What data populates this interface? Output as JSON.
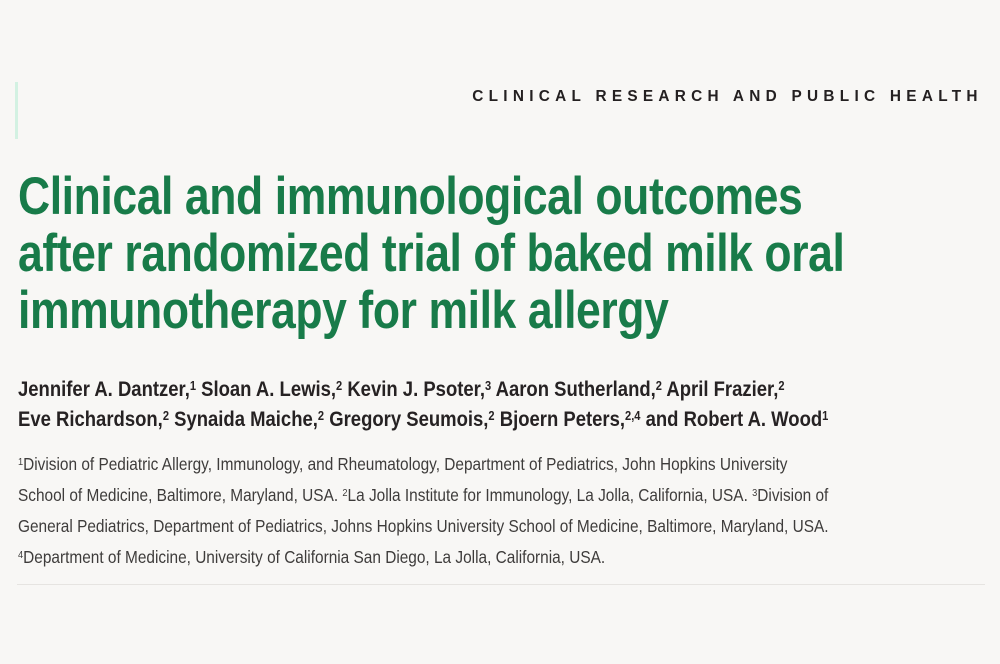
{
  "colors": {
    "background": "#f8f7f5",
    "kicker_text": "#242021",
    "title_green": "#187b49",
    "author_text": "#262223",
    "affiliation_text": "#3e3c3b",
    "accent_bar": "#d3f1e2",
    "divider": "#e6e4e1"
  },
  "kicker": {
    "text": "CLINICAL RESEARCH AND PUBLIC HEALTH"
  },
  "article": {
    "title_lines": [
      "Clinical and immunological outcomes",
      "after randomized trial of baked milk oral",
      "immunotherapy for milk allergy"
    ],
    "author_lines": [
      [
        {
          "t": "Jennifer A. Dantzer,"
        },
        {
          "s": "1"
        },
        {
          "t": " Sloan A. Lewis,"
        },
        {
          "s": "2"
        },
        {
          "t": " Kevin J. Psoter,"
        },
        {
          "s": "3"
        },
        {
          "t": " Aaron Sutherland,"
        },
        {
          "s": "2"
        },
        {
          "t": " April Frazier,"
        },
        {
          "s": "2"
        }
      ],
      [
        {
          "t": "Eve Richardson,"
        },
        {
          "s": "2"
        },
        {
          "t": " Synaida Maiche,"
        },
        {
          "s": "2"
        },
        {
          "t": " Gregory Seumois,"
        },
        {
          "s": "2"
        },
        {
          "t": " Bjoern Peters,"
        },
        {
          "s": "2,4"
        },
        {
          "t": " and Robert A. Wood"
        },
        {
          "s": "1"
        }
      ]
    ],
    "affiliation_lines": [
      [
        {
          "s": "1"
        },
        {
          "t": "Division of Pediatric Allergy, Immunology, and Rheumatology, Department of Pediatrics, John Hopkins University"
        }
      ],
      [
        {
          "t": "School of Medicine, Baltimore, Maryland, USA. "
        },
        {
          "s": "2"
        },
        {
          "t": "La Jolla Institute for Immunology, La Jolla, California, USA. "
        },
        {
          "s": "3"
        },
        {
          "t": "Division of"
        }
      ],
      [
        {
          "t": "General Pediatrics, Department of Pediatrics, Johns Hopkins University School of Medicine, Baltimore, Maryland, USA."
        }
      ],
      [
        {
          "s": "4"
        },
        {
          "t": "Department of Medicine, University of California San Diego, La Jolla, California, USA."
        }
      ]
    ]
  }
}
